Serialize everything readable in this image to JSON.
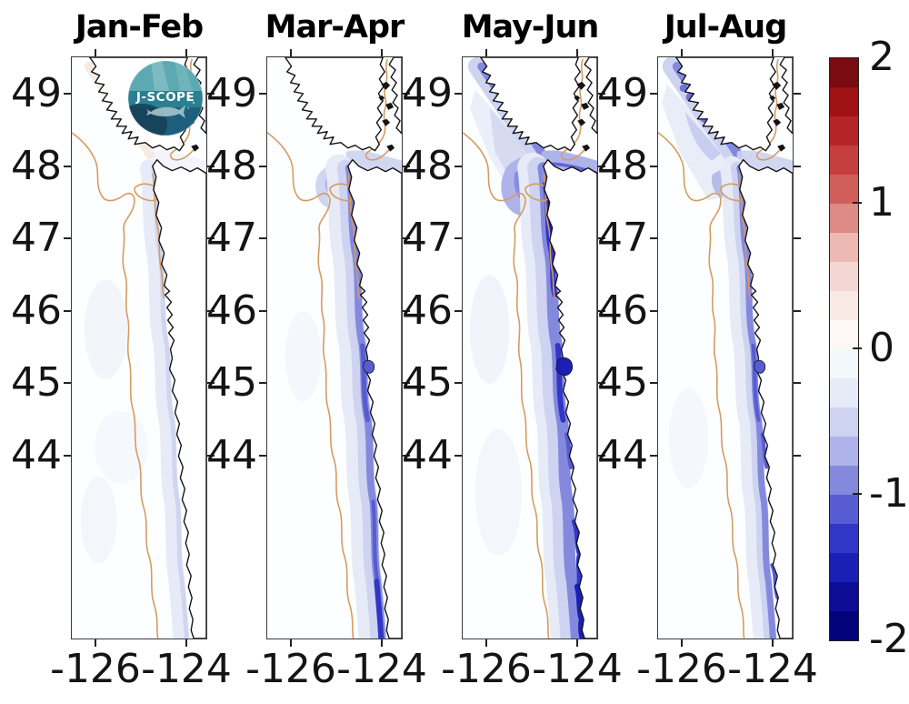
{
  "figure": {
    "background": "#ffffff"
  },
  "logo": {
    "text": "J-SCOPE"
  },
  "panels": [
    {
      "title": "Jan-Feb",
      "ytick_labels": [
        "49",
        "48",
        "47",
        "46",
        "45",
        "44"
      ],
      "xtick_labels": [
        "-126",
        "-124"
      ]
    },
    {
      "title": "Mar-Apr",
      "ytick_labels": [
        "49",
        "48",
        "47",
        "46",
        "45",
        "44"
      ],
      "xtick_labels": [
        "-126",
        "-124"
      ]
    },
    {
      "title": "May-Jun",
      "ytick_labels": [
        "49",
        "48",
        "47",
        "46",
        "45",
        "44"
      ],
      "xtick_labels": [
        "-126",
        "-124"
      ]
    },
    {
      "title": "Jul-Aug",
      "ytick_labels": [
        "49",
        "48",
        "47",
        "46",
        "45",
        "44"
      ],
      "xtick_labels": [
        "-126",
        "-124"
      ]
    }
  ],
  "colorbar": {
    "tick_labels": [
      "2",
      "1",
      "0",
      "-1",
      "-2"
    ],
    "colors": [
      "#7a0b10",
      "#9e1216",
      "#b52426",
      "#c43f3d",
      "#d05f5c",
      "#de8a86",
      "#ecb9b3",
      "#f4d7d2",
      "#f9e9e5",
      "#fdf8f6",
      "#f2f9fa",
      "#e6ebf7",
      "#cdd3f0",
      "#aeb3e9",
      "#8489de",
      "#575cd3",
      "#3136c6",
      "#1b1fb4",
      "#0d0d96",
      "#03047c"
    ]
  },
  "map_style": {
    "coastline": "#141414",
    "land_fill": "#ffffff",
    "ocean_fill": "#fdfeff",
    "bathymetry_contour": "#d59b60",
    "warm_tint": "#f6e9de"
  },
  "chart_data": {
    "type": "heatmap",
    "subtype": "geographic anomaly maps, bi-monthly panels with shared discrete colorbar",
    "panels": [
      "Jan-Feb",
      "Mar-Apr",
      "May-Jun",
      "Jul-Aug"
    ],
    "x_axis": {
      "ticks": [
        -126,
        -124
      ],
      "units": "degrees longitude",
      "range": [
        -126.55,
        -123.55
      ]
    },
    "y_axis": {
      "ticks": [
        49,
        48,
        47,
        46,
        45,
        44
      ],
      "units": "degrees latitude",
      "range": [
        41.5,
        49.5
      ]
    },
    "colorbar": {
      "range": [
        -2,
        2
      ],
      "ticks": [
        2,
        1,
        0,
        -1,
        -2
      ],
      "n_segments": 20,
      "step": 0.2,
      "style": "diverging red-white-blue; positive=red, negative=blue",
      "legend_position": "right"
    },
    "panel_summaries": [
      {
        "panel": "Jan-Feb",
        "approx_min": -0.4,
        "pattern": "very weak negative anomaly (~ -0.2) in a thin strip over the shelf; rest of domain near 0"
      },
      {
        "panel": "Mar-Apr",
        "approx_min": -1.4,
        "pattern": "negative band (~ -0.4 to -1.2) along the coast inside the shelf-break contour, strongest right at shore and in the south"
      },
      {
        "panel": "May-Jun",
        "approx_min": -2.0,
        "pattern": "strongest and widest negative band (~ -0.8 to -2.0) hugging the coast, filling the Strait of Juan de Fuca and spreading off SW Vancouver Island"
      },
      {
        "panel": "Jul-Aug",
        "approx_min": -1.4,
        "pattern": "moderate negative band (~ -0.4 to -1.4) nearshore with a broad weak plume off SW Vancouver Island; offshore near 0"
      }
    ],
    "grid": false
  }
}
